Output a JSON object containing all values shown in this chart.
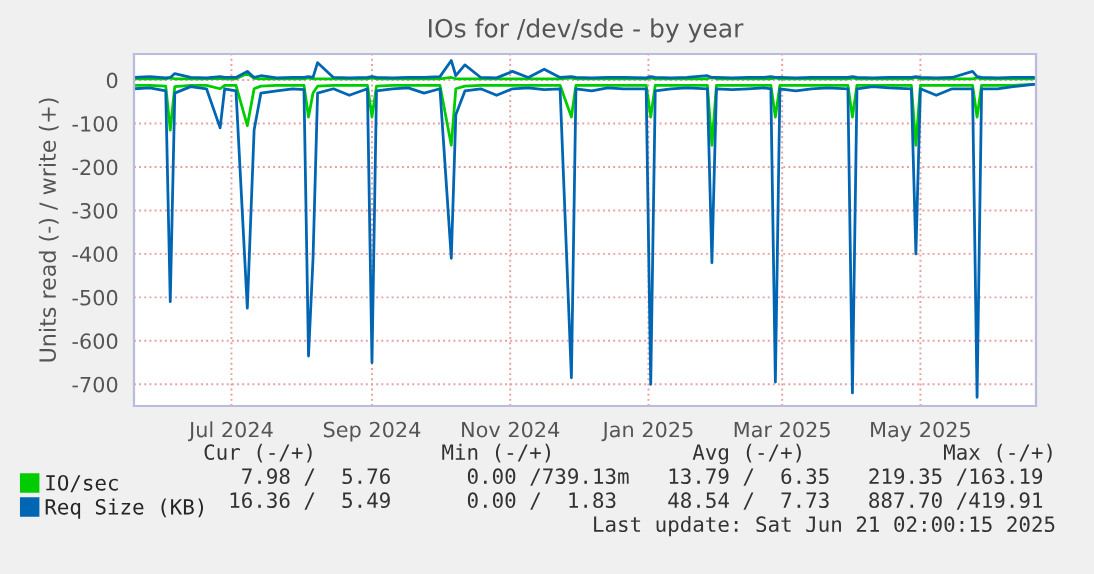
{
  "chart_data": {
    "type": "line",
    "title": "IOs for /dev/sde - by year",
    "ylabel": "Units read (-) / write (+)",
    "x": [
      "2024-05-19",
      "2024-05-26",
      "2024-06-02",
      "2024-06-04",
      "2024-06-06",
      "2024-06-13",
      "2024-06-20",
      "2024-06-26",
      "2024-06-28",
      "2024-07-03",
      "2024-07-08",
      "2024-07-11",
      "2024-07-14",
      "2024-07-21",
      "2024-07-28",
      "2024-08-02",
      "2024-08-04",
      "2024-08-06",
      "2024-08-08",
      "2024-08-15",
      "2024-08-22",
      "2024-08-30",
      "2024-09-01",
      "2024-09-03",
      "2024-09-10",
      "2024-09-17",
      "2024-09-24",
      "2024-10-01",
      "2024-10-06",
      "2024-10-08",
      "2024-10-12",
      "2024-10-19",
      "2024-10-26",
      "2024-11-02",
      "2024-11-09",
      "2024-11-16",
      "2024-11-23",
      "2024-11-28",
      "2024-11-30",
      "2024-12-07",
      "2024-12-14",
      "2024-12-21",
      "2024-12-31",
      "2025-01-02",
      "2025-01-04",
      "2025-01-11",
      "2025-01-18",
      "2025-01-27",
      "2025-01-29",
      "2025-01-31",
      "2025-02-07",
      "2025-02-14",
      "2025-02-21",
      "2025-02-24",
      "2025-02-26",
      "2025-02-28",
      "2025-03-07",
      "2025-03-14",
      "2025-03-21",
      "2025-03-30",
      "2025-04-01",
      "2025-04-03",
      "2025-04-10",
      "2025-04-17",
      "2025-04-27",
      "2025-04-29",
      "2025-05-01",
      "2025-05-08",
      "2025-05-15",
      "2025-05-24",
      "2025-05-26",
      "2025-05-28",
      "2025-06-04",
      "2025-06-11",
      "2025-06-20"
    ],
    "series": [
      {
        "name": "IO/sec",
        "color": "#00cc00",
        "values": [
          -12,
          -12,
          -14,
          -115,
          -15,
          -12,
          -12,
          -20,
          -12,
          -12,
          -105,
          -20,
          -14,
          -12,
          -12,
          -12,
          -85,
          -30,
          -14,
          -12,
          -12,
          -12,
          -85,
          -14,
          -12,
          -12,
          -12,
          -12,
          -150,
          -20,
          -14,
          -12,
          -12,
          -12,
          -12,
          -12,
          -12,
          -85,
          -12,
          -12,
          -12,
          -12,
          -12,
          -85,
          -12,
          -12,
          -12,
          -12,
          -150,
          -12,
          -12,
          -12,
          -12,
          -12,
          -85,
          -12,
          -12,
          -12,
          -12,
          -12,
          -85,
          -12,
          -12,
          -12,
          -12,
          -150,
          -12,
          -12,
          -12,
          -12,
          -85,
          -12,
          -12,
          -12,
          -10
        ]
      },
      {
        "color": "#00cc00",
        "values": [
          3,
          3,
          3,
          5,
          3,
          3,
          3,
          4,
          3,
          3,
          15,
          4,
          3,
          3,
          3,
          3,
          5,
          3,
          3,
          3,
          3,
          3,
          5,
          3,
          3,
          3,
          3,
          3,
          6,
          3,
          3,
          3,
          3,
          3,
          3,
          3,
          3,
          5,
          3,
          3,
          3,
          3,
          3,
          5,
          3,
          3,
          3,
          3,
          6,
          3,
          3,
          3,
          3,
          3,
          5,
          3,
          3,
          3,
          3,
          3,
          5,
          3,
          3,
          3,
          3,
          6,
          3,
          3,
          3,
          3,
          5,
          3,
          3,
          3,
          3
        ]
      },
      {
        "name": "Req Size (KB)",
        "color": "#0066b3",
        "values": [
          -20,
          -18,
          -25,
          -510,
          -30,
          -15,
          -20,
          -110,
          -20,
          -25,
          -525,
          -115,
          -30,
          -25,
          -20,
          -22,
          -635,
          -410,
          -30,
          -20,
          -35,
          -20,
          -650,
          -25,
          -20,
          -18,
          -30,
          -20,
          -410,
          -80,
          -25,
          -20,
          -35,
          -20,
          -18,
          -22,
          -20,
          -685,
          -20,
          -25,
          -18,
          -20,
          -20,
          -700,
          -25,
          -20,
          -18,
          -20,
          -420,
          -20,
          -22,
          -20,
          -18,
          -20,
          -695,
          -20,
          -25,
          -20,
          -18,
          -20,
          -720,
          -20,
          -15,
          -18,
          -20,
          -400,
          -20,
          -35,
          -20,
          -20,
          -730,
          -20,
          -20,
          -15,
          -10
        ]
      },
      {
        "color": "#0066b3",
        "values": [
          6,
          8,
          5,
          6,
          15,
          6,
          5,
          8,
          6,
          6,
          20,
          6,
          10,
          5,
          6,
          6,
          8,
          6,
          40,
          6,
          5,
          6,
          8,
          6,
          5,
          6,
          6,
          8,
          45,
          10,
          35,
          6,
          5,
          20,
          6,
          25,
          6,
          8,
          6,
          5,
          6,
          6,
          5,
          8,
          6,
          5,
          6,
          10,
          6,
          6,
          5,
          6,
          6,
          8,
          6,
          6,
          5,
          6,
          6,
          6,
          8,
          6,
          5,
          6,
          6,
          8,
          6,
          5,
          6,
          20,
          8,
          6,
          5,
          6,
          6
        ]
      }
    ],
    "xlim": [
      "2024-05-19",
      "2025-06-21"
    ],
    "xticks": [
      {
        "value": "2024-07-01",
        "label": "Jul 2024"
      },
      {
        "value": "2024-09-01",
        "label": "Sep 2024"
      },
      {
        "value": "2024-11-01",
        "label": "Nov 2024"
      },
      {
        "value": "2025-01-01",
        "label": "Jan 2025"
      },
      {
        "value": "2025-03-01",
        "label": "Mar 2025"
      },
      {
        "value": "2025-05-01",
        "label": "May 2025"
      }
    ],
    "ylim": [
      -750,
      60
    ],
    "yticks": [
      -700,
      -600,
      -500,
      -400,
      -300,
      -200,
      -100,
      0
    ],
    "grid": true,
    "legend": "bottom",
    "annotations": [
      "Cur (-/+)          Min (-/+)           Avg (-/+)           Max (-/+)",
      "7.98 /  5.76      0.00 /739.13m   13.79 /  6.35   219.35 /163.19 ",
      "16.36 /  5.49      0.00 /  1.83    48.54 /  7.73   887.70 /419.91 ",
      "Last update: Sat Jun 21 02:00:15 2025"
    ]
  }
}
